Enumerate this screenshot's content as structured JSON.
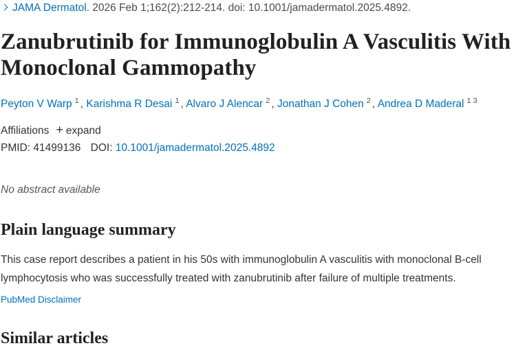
{
  "citation": {
    "journal": "JAMA Dermatol.",
    "details": "2026 Feb 1;162(2):212-214. doi: 10.1001/jamadermatol.2025.4892."
  },
  "title": "Zanubrutinib for Immunoglobulin A Vasculitis With Monoclonal Gammopathy",
  "authors": [
    {
      "name": "Peyton V Warp",
      "aff": "1"
    },
    {
      "name": "Karishma R Desai",
      "aff": "1"
    },
    {
      "name": "Alvaro J Alencar",
      "aff": "2"
    },
    {
      "name": "Jonathan J Cohen",
      "aff": "2"
    },
    {
      "name": "Andrea D Maderal",
      "aff": "1 3"
    }
  ],
  "affiliations": {
    "label": "Affiliations",
    "expand": "expand"
  },
  "ids": {
    "pmid_label": "PMID:",
    "pmid": "41499136",
    "doi_label": "DOI:",
    "doi": "10.1001/jamadermatol.2025.4892"
  },
  "no_abstract": "No abstract available",
  "plain_summary": {
    "heading": "Plain language summary",
    "text": "This case report describes a patient in his 50s with immunoglobulin A vasculitis with monoclonal B-cell lymphocytosis who was successfully treated with zanubrutinib after failure of multiple treatments."
  },
  "disclaimer": "PubMed Disclaimer",
  "similar_heading": "Similar articles"
}
